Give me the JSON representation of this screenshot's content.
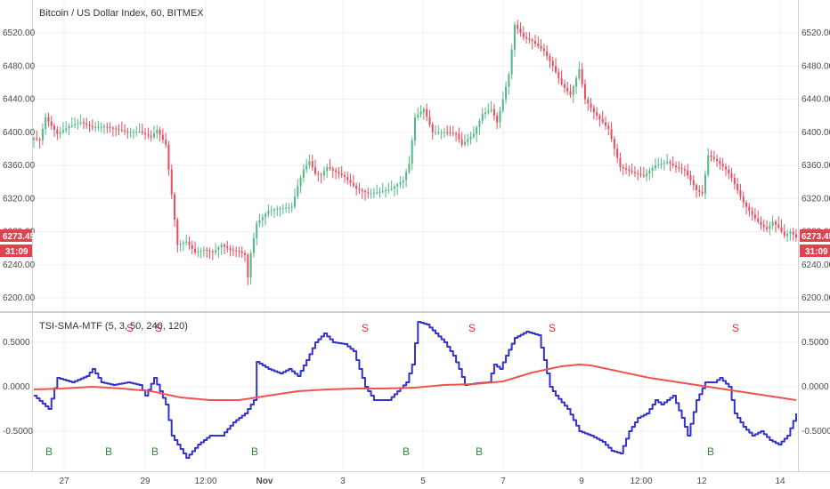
{
  "chart_data": [
    {
      "type": "candlestick",
      "title": "Bitcoin / US Dollar Index, 60, BITMEX",
      "y_ticks": [
        "6520.00",
        "6480.00",
        "6440.00",
        "6400.00",
        "6360.00",
        "6320.00",
        "6280.00",
        "6240.00",
        "6200.00"
      ],
      "y_tick_values": [
        6520,
        6480,
        6440,
        6400,
        6360,
        6320,
        6280,
        6240,
        6200
      ],
      "ylim": [
        6188,
        6548
      ],
      "last_price": "6273.45",
      "countdown": "31:09",
      "colors": {
        "up": "#53b987",
        "down": "#eb4d5c",
        "tag": "#e0424e"
      },
      "close_anchors": [
        [
          0,
          6393
        ],
        [
          2,
          6390
        ],
        [
          4,
          6418
        ],
        [
          8,
          6398
        ],
        [
          12,
          6407
        ],
        [
          16,
          6412
        ],
        [
          20,
          6406
        ],
        [
          24,
          6407
        ],
        [
          28,
          6404
        ],
        [
          32,
          6400
        ],
        [
          36,
          6401
        ],
        [
          40,
          6394
        ],
        [
          42,
          6403
        ],
        [
          45,
          6385
        ],
        [
          47,
          6325
        ],
        [
          49,
          6264
        ],
        [
          52,
          6268
        ],
        [
          55,
          6255
        ],
        [
          58,
          6258
        ],
        [
          61,
          6255
        ],
        [
          64,
          6264
        ],
        [
          67,
          6258
        ],
        [
          70,
          6256
        ],
        [
          72,
          6252
        ],
        [
          73,
          6225
        ],
        [
          74,
          6254
        ],
        [
          76,
          6290
        ],
        [
          80,
          6305
        ],
        [
          84,
          6308
        ],
        [
          88,
          6310
        ],
        [
          90,
          6335
        ],
        [
          92,
          6355
        ],
        [
          94,
          6365
        ],
        [
          96,
          6350
        ],
        [
          98,
          6348
        ],
        [
          100,
          6358
        ],
        [
          103,
          6352
        ],
        [
          106,
          6346
        ],
        [
          110,
          6332
        ],
        [
          114,
          6326
        ],
        [
          118,
          6328
        ],
        [
          122,
          6332
        ],
        [
          126,
          6342
        ],
        [
          128,
          6362
        ],
        [
          130,
          6418
        ],
        [
          133,
          6428
        ],
        [
          136,
          6400
        ],
        [
          140,
          6400
        ],
        [
          144,
          6398
        ],
        [
          146,
          6385
        ],
        [
          150,
          6398
        ],
        [
          153,
          6422
        ],
        [
          156,
          6428
        ],
        [
          158,
          6412
        ],
        [
          160,
          6440
        ],
        [
          162,
          6470
        ],
        [
          164,
          6530
        ],
        [
          167,
          6515
        ],
        [
          170,
          6510
        ],
        [
          174,
          6498
        ],
        [
          177,
          6480
        ],
        [
          180,
          6458
        ],
        [
          183,
          6445
        ],
        [
          186,
          6476
        ],
        [
          188,
          6440
        ],
        [
          191,
          6424
        ],
        [
          194,
          6412
        ],
        [
          196,
          6404
        ],
        [
          198,
          6380
        ],
        [
          200,
          6358
        ],
        [
          204,
          6352
        ],
        [
          208,
          6347
        ],
        [
          212,
          6360
        ],
        [
          216,
          6364
        ],
        [
          219,
          6358
        ],
        [
          222,
          6354
        ],
        [
          224,
          6342
        ],
        [
          226,
          6330
        ],
        [
          228,
          6326
        ],
        [
          230,
          6372
        ],
        [
          232,
          6368
        ],
        [
          234,
          6362
        ],
        [
          236,
          6355
        ],
        [
          238,
          6345
        ],
        [
          240,
          6330
        ],
        [
          242,
          6315
        ],
        [
          244,
          6305
        ],
        [
          246,
          6296
        ],
        [
          248,
          6288
        ],
        [
          250,
          6283
        ],
        [
          252,
          6292
        ],
        [
          254,
          6285
        ],
        [
          256,
          6275
        ],
        [
          258,
          6280
        ],
        [
          260,
          6273
        ]
      ],
      "signals": [
        {
          "label": "S",
          "x": "Oct 28",
          "color": "#d32f2f"
        },
        {
          "label": "S",
          "x": "Oct 29",
          "color": "#d32f2f"
        },
        {
          "label": "S",
          "x": "Nov 3",
          "color": "#d32f2f"
        },
        {
          "label": "S",
          "x": "Nov 6",
          "color": "#d32f2f"
        },
        {
          "label": "S",
          "x": "Nov 8",
          "color": "#d32f2f"
        },
        {
          "label": "S",
          "x": "Nov 12",
          "color": "#d32f2f"
        }
      ],
      "x_ticks": [
        "27",
        "29",
        "12:00",
        "Nov",
        "3",
        "5",
        "7",
        "9",
        "12:00",
        "12",
        "14"
      ]
    },
    {
      "type": "line",
      "title": "TSI-SMA-MTF (5, 3, 50, 240, 120)",
      "y_ticks": [
        "0.5000",
        "0.0000",
        "-0.5000"
      ],
      "y_tick_values": [
        0.5,
        0,
        -0.5
      ],
      "ylim": [
        -0.88,
        0.82
      ],
      "series": [
        {
          "color": "#3333cc",
          "anchors": [
            [
              0,
              -0.1
            ],
            [
              5,
              -0.25
            ],
            [
              8,
              0.1
            ],
            [
              13,
              0.05
            ],
            [
              18,
              0.12
            ],
            [
              20,
              0.2
            ],
            [
              23,
              0.05
            ],
            [
              27,
              0.02
            ],
            [
              32,
              0.05
            ],
            [
              36,
              0.02
            ],
            [
              38,
              -0.1
            ],
            [
              41,
              0.1
            ],
            [
              43,
              -0.05
            ],
            [
              45,
              -0.2
            ],
            [
              47,
              -0.55
            ],
            [
              52,
              -0.8
            ],
            [
              56,
              -0.65
            ],
            [
              60,
              -0.55
            ],
            [
              64,
              -0.55
            ],
            [
              68,
              -0.4
            ],
            [
              72,
              -0.3
            ],
            [
              75,
              -0.15
            ],
            [
              76,
              0.28
            ],
            [
              80,
              0.2
            ],
            [
              84,
              0.15
            ],
            [
              87,
              0.2
            ],
            [
              90,
              0.12
            ],
            [
              93,
              0.3
            ],
            [
              96,
              0.5
            ],
            [
              99,
              0.6
            ],
            [
              102,
              0.5
            ],
            [
              106,
              0.48
            ],
            [
              109,
              0.4
            ],
            [
              111,
              0.2
            ],
            [
              113,
              0.0
            ],
            [
              116,
              -0.15
            ],
            [
              121,
              -0.15
            ],
            [
              124,
              -0.05
            ],
            [
              127,
              0.05
            ],
            [
              129,
              0.25
            ],
            [
              131,
              0.73
            ],
            [
              134,
              0.7
            ],
            [
              137,
              0.6
            ],
            [
              140,
              0.5
            ],
            [
              143,
              0.35
            ],
            [
              145,
              0.2
            ],
            [
              147,
              0.02
            ],
            [
              151,
              0.04
            ],
            [
              155,
              0.05
            ],
            [
              157,
              0.25
            ],
            [
              159,
              0.2
            ],
            [
              161,
              0.35
            ],
            [
              164,
              0.55
            ],
            [
              168,
              0.62
            ],
            [
              172,
              0.58
            ],
            [
              174,
              0.3
            ],
            [
              176,
              0.0
            ],
            [
              178,
              -0.1
            ],
            [
              182,
              -0.25
            ],
            [
              186,
              -0.5
            ],
            [
              190,
              -0.55
            ],
            [
              194,
              -0.62
            ],
            [
              197,
              -0.72
            ],
            [
              200,
              -0.75
            ],
            [
              203,
              -0.5
            ],
            [
              206,
              -0.35
            ],
            [
              209,
              -0.3
            ],
            [
              212,
              -0.15
            ],
            [
              214,
              -0.2
            ],
            [
              218,
              -0.1
            ],
            [
              221,
              -0.35
            ],
            [
              223,
              -0.55
            ],
            [
              226,
              -0.15
            ],
            [
              229,
              0.05
            ],
            [
              232,
              0.05
            ],
            [
              234,
              0.1
            ],
            [
              237,
              0.0
            ],
            [
              239,
              -0.3
            ],
            [
              242,
              -0.45
            ],
            [
              245,
              -0.55
            ],
            [
              248,
              -0.5
            ],
            [
              251,
              -0.6
            ],
            [
              254,
              -0.65
            ],
            [
              257,
              -0.55
            ],
            [
              260,
              -0.3
            ]
          ]
        },
        {
          "color": "#ef5350",
          "anchors": [
            [
              0,
              -0.03
            ],
            [
              10,
              -0.02
            ],
            [
              20,
              0.0
            ],
            [
              30,
              -0.02
            ],
            [
              40,
              -0.05
            ],
            [
              50,
              -0.12
            ],
            [
              60,
              -0.15
            ],
            [
              70,
              -0.15
            ],
            [
              80,
              -0.1
            ],
            [
              90,
              -0.05
            ],
            [
              100,
              -0.03
            ],
            [
              110,
              -0.02
            ],
            [
              120,
              -0.02
            ],
            [
              130,
              -0.01
            ],
            [
              140,
              0.02
            ],
            [
              150,
              0.03
            ],
            [
              160,
              0.06
            ],
            [
              170,
              0.16
            ],
            [
              180,
              0.23
            ],
            [
              186,
              0.25
            ],
            [
              190,
              0.24
            ],
            [
              200,
              0.17
            ],
            [
              210,
              0.1
            ],
            [
              220,
              0.05
            ],
            [
              230,
              0.0
            ],
            [
              240,
              -0.05
            ],
            [
              250,
              -0.1
            ],
            [
              260,
              -0.15
            ]
          ]
        }
      ],
      "signals": [
        {
          "label": "B",
          "x": "Oct 26",
          "color": "#2e8b3e"
        },
        {
          "label": "B",
          "x": "Oct 28",
          "color": "#2e8b3e"
        },
        {
          "label": "B",
          "x": "Oct 29",
          "color": "#2e8b3e"
        },
        {
          "label": "B",
          "x": "Oct 31",
          "color": "#2e8b3e"
        },
        {
          "label": "B",
          "x": "Nov 4",
          "color": "#2e8b3e"
        },
        {
          "label": "B",
          "x": "Nov 6",
          "color": "#2e8b3e"
        },
        {
          "label": "B",
          "x": "Nov 12",
          "color": "#2e8b3e"
        }
      ]
    }
  ]
}
